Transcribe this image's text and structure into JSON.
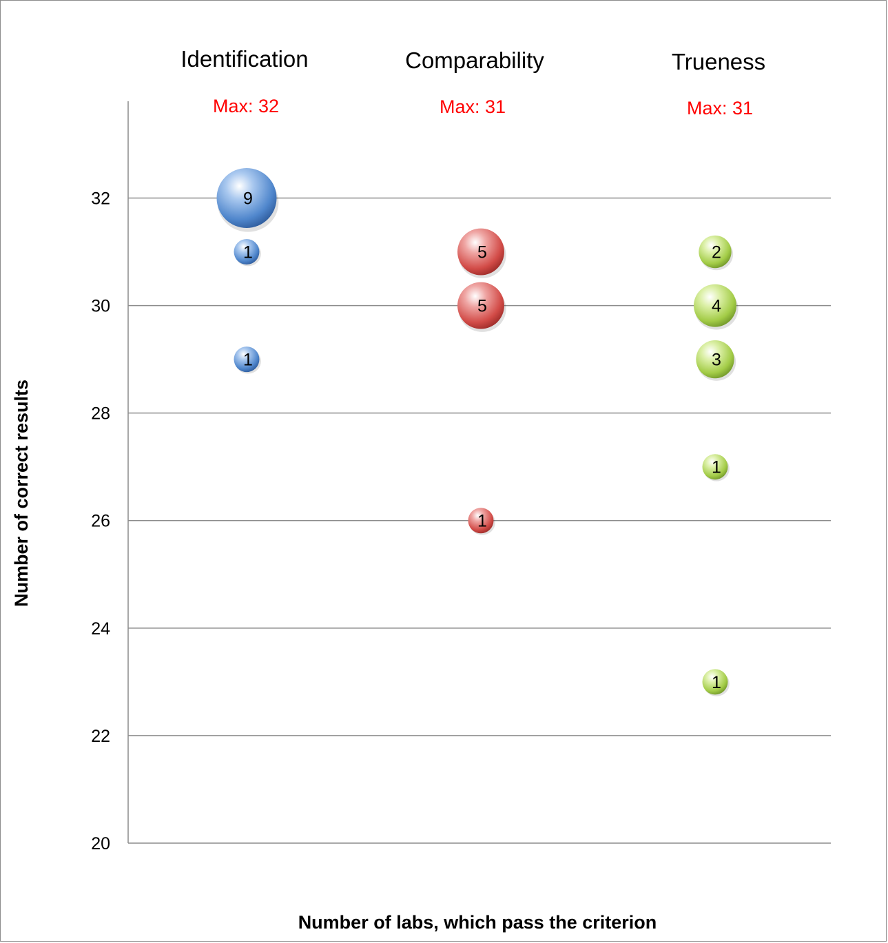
{
  "chart_data": {
    "type": "scatter",
    "subtype": "bubble",
    "xlabel": "Number of labs, which pass the criterion",
    "ylabel": "Number of correct results",
    "ylim": [
      20,
      33.8
    ],
    "yticks": [
      20,
      22,
      24,
      26,
      28,
      30,
      32
    ],
    "grid": true,
    "categories": [
      "Identification",
      "Comparability",
      "Trueness"
    ],
    "max_labels": [
      "Max: 32",
      "Max: 31",
      "Max: 31"
    ],
    "series": [
      {
        "color": "#5b8fd0",
        "points": [
          {
            "y": 32,
            "count": 9
          },
          {
            "y": 31,
            "count": 1
          },
          {
            "y": 29,
            "count": 1
          }
        ]
      },
      {
        "color": "#d9534f",
        "points": [
          {
            "y": 31,
            "count": 5
          },
          {
            "y": 30,
            "count": 5
          },
          {
            "y": 26,
            "count": 1
          }
        ]
      },
      {
        "color": "#a8d04e",
        "points": [
          {
            "y": 31,
            "count": 2
          },
          {
            "y": 30,
            "count": 4
          },
          {
            "y": 29,
            "count": 3
          },
          {
            "y": 27,
            "count": 1
          },
          {
            "y": 23,
            "count": 1
          }
        ]
      }
    ]
  }
}
